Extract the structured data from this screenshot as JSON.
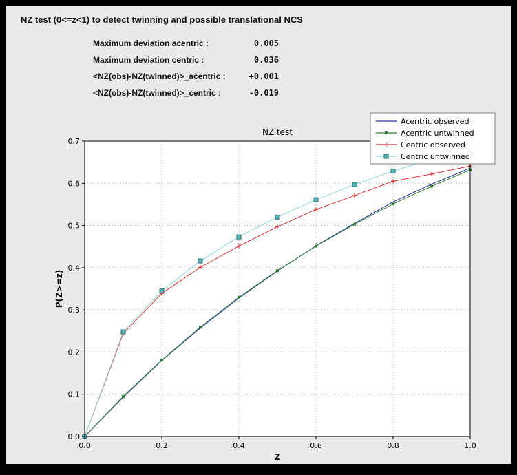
{
  "header": {
    "title": "NZ test (0<=z<1) to detect twinning and possible translational NCS"
  },
  "stats": {
    "rows": [
      {
        "label": "Maximum deviation acentric :",
        "value": "0.005"
      },
      {
        "label": "Maximum deviation centric :",
        "value": "0.036"
      },
      {
        "label": "<NZ(obs)-NZ(twinned)>_acentric :",
        "value": "+0.001"
      },
      {
        "label": "<NZ(obs)-NZ(twinned)>_centric :",
        "value": "-0.019"
      }
    ]
  },
  "chart_data": {
    "type": "line",
    "title": "NZ test",
    "xlabel": "Z",
    "ylabel": "P(Z>=z)",
    "xlim": [
      0.0,
      1.0
    ],
    "ylim": [
      0.0,
      0.7
    ],
    "xticks": [
      0.0,
      0.2,
      0.4,
      0.6,
      0.8,
      1.0
    ],
    "yticks": [
      0.0,
      0.1,
      0.2,
      0.3,
      0.4,
      0.5,
      0.6,
      0.7
    ],
    "grid": "dotted",
    "legend_position": "upper-right",
    "x": [
      0.0,
      0.1,
      0.2,
      0.3,
      0.4,
      0.5,
      0.6,
      0.7,
      0.8,
      0.9,
      1.0
    ],
    "series": [
      {
        "name": "Acentric observed",
        "color": "#2633a8",
        "marker": "none",
        "values": [
          0.0,
          0.093,
          0.18,
          0.257,
          0.328,
          0.392,
          0.452,
          0.505,
          0.556,
          0.598,
          0.636
        ]
      },
      {
        "name": "Acentric untwinned",
        "color": "#2f7d2f",
        "marker": "square-small",
        "values": [
          0.0,
          0.095,
          0.181,
          0.259,
          0.33,
          0.393,
          0.451,
          0.503,
          0.551,
          0.593,
          0.632
        ]
      },
      {
        "name": "Centric observed",
        "color": "#dd3333",
        "marker": "plus",
        "values": [
          0.0,
          0.244,
          0.339,
          0.401,
          0.451,
          0.497,
          0.538,
          0.571,
          0.605,
          0.622,
          0.641
        ]
      },
      {
        "name": "Centric untwinned",
        "color": "#8fd9d9",
        "marker": "square",
        "marker_fill": "#53b5b5",
        "marker_edge": "#2f6f6f",
        "values": [
          0.0,
          0.248,
          0.345,
          0.416,
          0.473,
          0.52,
          0.561,
          0.597,
          0.629,
          0.657,
          0.683
        ]
      }
    ]
  }
}
